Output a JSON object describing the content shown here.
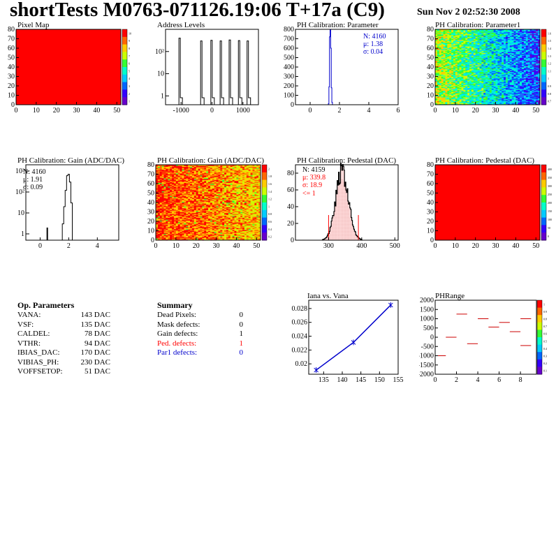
{
  "header": {
    "title": "shortTests M0763-071126.19:06 T+17a (C9)",
    "date": "Sun Nov  2 02:52:30 2008"
  },
  "colors": {
    "red": "#ff0000",
    "blue": "#0000cc",
    "hist_fill": "#ffe0e0"
  },
  "op_params": {
    "title": "Op. Parameters",
    "rows": [
      {
        "name": "VANA:",
        "value": "143 DAC"
      },
      {
        "name": "VSF:",
        "value": "135 DAC"
      },
      {
        "name": "CALDEL:",
        "value": "78 DAC"
      },
      {
        "name": "VTHR:",
        "value": "94 DAC"
      },
      {
        "name": "IBIAS_DAC:",
        "value": "170 DAC"
      },
      {
        "name": "VIBIAS_PH:",
        "value": "230 DAC"
      },
      {
        "name": "VOFFSETOP:",
        "value": "51 DAC"
      }
    ]
  },
  "summary": {
    "title": "Summary",
    "rows": [
      {
        "name": "Dead Pixels:",
        "value": "0",
        "color": "#000000"
      },
      {
        "name": "Mask defects:",
        "value": "0",
        "color": "#000000"
      },
      {
        "name": "Gain defects:",
        "value": "1",
        "color": "#000000"
      },
      {
        "name": "Ped. defects:",
        "value": "1",
        "color": "#ff0000"
      },
      {
        "name": "Par1 defects:",
        "value": "0",
        "color": "#0000cc"
      }
    ]
  },
  "chart_data": [
    {
      "id": "pixelmap",
      "type": "heatmap",
      "title": "Pixel Map",
      "xlim": [
        0,
        52
      ],
      "ylim": [
        0,
        80
      ],
      "xticks": [
        "0",
        "10",
        "20",
        "30",
        "40",
        "50"
      ],
      "yticks": [
        "0",
        "10",
        "20",
        "30",
        "40",
        "50",
        "60",
        "70",
        "80"
      ],
      "uniform_color": "#ff0000",
      "palette": [
        "10",
        "9",
        "8",
        "7",
        "6",
        "5",
        "4",
        "3",
        "2",
        "1"
      ]
    },
    {
      "id": "addrlevels",
      "type": "bar",
      "title": "Address Levels",
      "log_y": true,
      "xlim": [
        -1500,
        1500
      ],
      "xticks": [
        "-1000",
        "0",
        "1000"
      ],
      "yticks": [
        "1",
        "10",
        "10²"
      ],
      "peaks": [
        {
          "x": -1000,
          "h": 400
        },
        {
          "x": -300,
          "h": 300
        },
        {
          "x": 30,
          "h": 320
        },
        {
          "x": 330,
          "h": 300
        },
        {
          "x": 620,
          "h": 330
        },
        {
          "x": 920,
          "h": 310
        },
        {
          "x": 1200,
          "h": 300
        }
      ]
    },
    {
      "id": "phpar",
      "type": "bar",
      "title": "PH Calibration: Parameter",
      "xlim": [
        -1,
        6
      ],
      "ylim": [
        0,
        800
      ],
      "xticks": [
        "0",
        "2",
        "4",
        "6"
      ],
      "yticks": [
        "0",
        "100",
        "200",
        "300",
        "400",
        "500",
        "600",
        "700",
        "800"
      ],
      "stats": {
        "n": "N: 4160",
        "mu": "μ: 1.38",
        "sigma": "σ: 0.04"
      },
      "bins": [
        {
          "x": 1.26,
          "y": 10
        },
        {
          "x": 1.3,
          "y": 190
        },
        {
          "x": 1.34,
          "y": 720
        },
        {
          "x": 1.38,
          "y": 800
        },
        {
          "x": 1.42,
          "y": 600
        },
        {
          "x": 1.46,
          "y": 180
        },
        {
          "x": 1.5,
          "y": 25
        }
      ]
    },
    {
      "id": "phpar1",
      "type": "heatmap",
      "title": "PH Calibration: Parameter1",
      "xlim": [
        0,
        52
      ],
      "ylim": [
        0,
        80
      ],
      "xticks": [
        "0",
        "10",
        "20",
        "30",
        "40",
        "50"
      ],
      "yticks": [
        "0",
        "10",
        "20",
        "30",
        "40",
        "50",
        "60",
        "70",
        "80"
      ],
      "palette": [
        "1.6",
        "1.5",
        "1.4",
        "1.3",
        "1.2",
        "1.1",
        "1",
        "0.9",
        "0.8",
        "0.7"
      ]
    },
    {
      "id": "gainhist",
      "type": "bar",
      "title": "PH Calibration: Gain (ADC/DAC)",
      "log_y": true,
      "xlim": [
        -1,
        5.5
      ],
      "xticks": [
        "0",
        "2",
        "4"
      ],
      "yticks": [
        "1",
        "10",
        "10²",
        "10³"
      ],
      "stats": {
        "n": "N: 4160",
        "mu": "μ: 1.91",
        "sigma": "σ: 0.09"
      },
      "bins": [
        {
          "x": 0.5,
          "y": 2
        },
        {
          "x": 1.6,
          "y": 3
        },
        {
          "x": 1.7,
          "y": 20
        },
        {
          "x": 1.8,
          "y": 120
        },
        {
          "x": 1.9,
          "y": 600
        },
        {
          "x": 2.0,
          "y": 700
        },
        {
          "x": 2.1,
          "y": 300
        },
        {
          "x": 2.2,
          "y": 30
        }
      ]
    },
    {
      "id": "gainmap",
      "type": "heatmap",
      "title": "PH Calibration: Gain (ADC/DAC)",
      "xlim": [
        0,
        52
      ],
      "ylim": [
        0,
        80
      ],
      "xticks": [
        "0",
        "10",
        "20",
        "30",
        "40",
        "50"
      ],
      "yticks": [
        "0",
        "10",
        "20",
        "30",
        "40",
        "50",
        "60",
        "70",
        "80"
      ],
      "palette": [
        "2",
        "1.8",
        "1.6",
        "1.4",
        "1.2",
        "1",
        "0.8",
        "0.6",
        "0.4",
        "0.2"
      ]
    },
    {
      "id": "pedhist",
      "type": "bar",
      "title": "PH Calibration: Pedestal (DAC)",
      "xlim": [
        200,
        510
      ],
      "ylim": [
        0,
        90
      ],
      "xticks": [
        "300",
        "400",
        "500"
      ],
      "yticks": [
        "0",
        "20",
        "40",
        "60",
        "80"
      ],
      "stats": {
        "n": "N: 4159",
        "mu": "μ: 339.8",
        "sigma": "σ: 18.9",
        "extra": "<= 1"
      },
      "center": 340,
      "sigma": 19,
      "peak": 82,
      "cut_lines": [
        300,
        390
      ]
    },
    {
      "id": "pedmap",
      "type": "heatmap",
      "title": "PH Calibration: Pedestal (DAC)",
      "xlim": [
        0,
        52
      ],
      "ylim": [
        0,
        80
      ],
      "xticks": [
        "0",
        "10",
        "20",
        "30",
        "40",
        "50"
      ],
      "yticks": [
        "0",
        "10",
        "20",
        "30",
        "40",
        "50",
        "60",
        "70",
        "80"
      ],
      "uniform_color": "#ff0000",
      "palette": [
        "400",
        "350",
        "300",
        "250",
        "200",
        "150",
        "100",
        "50",
        "0"
      ]
    },
    {
      "id": "iana",
      "type": "line",
      "title": "Iana vs. Vana",
      "xlim": [
        131,
        155
      ],
      "ylim": [
        0.0185,
        0.0292
      ],
      "xticks": [
        "135",
        "140",
        "145",
        "150",
        "155"
      ],
      "yticks": [
        "0.02",
        "0.022",
        "0.024",
        "0.026",
        "0.028"
      ],
      "x": [
        133,
        143,
        153
      ],
      "y": [
        0.0191,
        0.0231,
        0.0285
      ]
    },
    {
      "id": "phrange",
      "type": "line",
      "title": "PHRange",
      "xlim": [
        0,
        9.5
      ],
      "ylim": [
        -2000,
        2000
      ],
      "xticks": [
        "0",
        "2",
        "4",
        "6",
        "8"
      ],
      "yticks": [
        "-2000",
        "-1500",
        "-1000",
        "-500",
        "0",
        "500",
        "1000",
        "1500",
        "2000"
      ],
      "segments": [
        {
          "x": 0,
          "y": -1000
        },
        {
          "x": 1,
          "y": 0
        },
        {
          "x": 2,
          "y": 1250
        },
        {
          "x": 3,
          "y": -350
        },
        {
          "x": 4,
          "y": 1000
        },
        {
          "x": 5,
          "y": 550
        },
        {
          "x": 6,
          "y": 800
        },
        {
          "x": 7,
          "y": 300
        },
        {
          "x": 8,
          "y": 1000
        },
        {
          "x": 8,
          "y": -450
        }
      ],
      "palette": [
        "1",
        "0.9",
        "0.8",
        "0.7",
        "0.6",
        "0.5",
        "0.4",
        "0.3",
        "0.2",
        "0.1"
      ]
    }
  ]
}
